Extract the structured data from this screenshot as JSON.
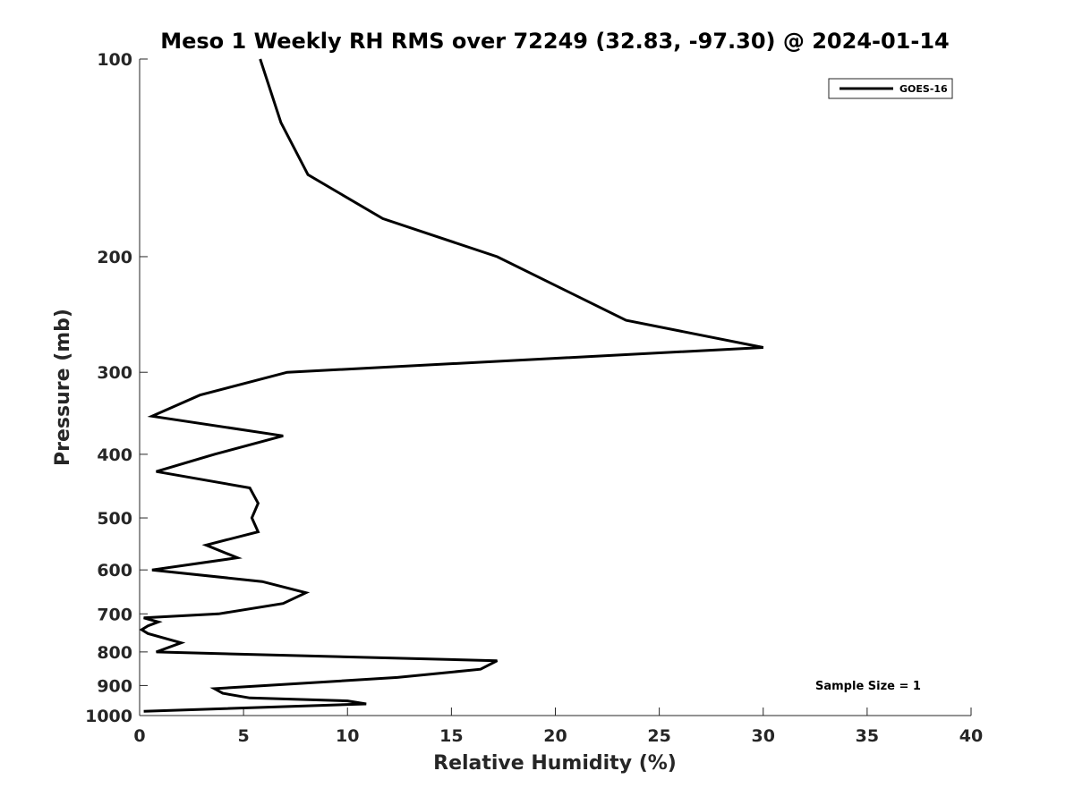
{
  "chart_data": {
    "type": "line",
    "title": "Meso 1 Weekly RH RMS over 72249 (32.83, -97.30) @ 2024-01-14",
    "xlabel": "Relative Humidity (%)",
    "ylabel": "Pressure (mb)",
    "xlim": [
      0,
      40
    ],
    "ylim": [
      100,
      1000
    ],
    "y_scale": "log",
    "y_reversed": true,
    "grid": false,
    "legend_position": "top-right",
    "xticks": [
      "0",
      "5",
      "10",
      "15",
      "20",
      "25",
      "30",
      "35",
      "40"
    ],
    "yticks": [
      "100",
      "200",
      "300",
      "400",
      "500",
      "600",
      "700",
      "800",
      "900",
      "1000"
    ],
    "annotation": "Sample Size = 1",
    "series": [
      {
        "name": "GOES-16",
        "color": "#000000",
        "x": [
          5.8,
          6.8,
          8.1,
          11.7,
          17.2,
          23.4,
          30.0,
          7.1,
          2.9,
          0.6,
          6.9,
          3.6,
          0.8,
          5.3,
          5.7,
          5.4,
          5.7,
          3.2,
          4.7,
          0.6,
          5.9,
          8.0,
          6.9,
          3.8,
          0.2,
          0.9,
          0.4,
          0.1,
          0.4,
          2.0,
          0.8,
          17.2,
          16.4,
          12.4,
          6.1,
          3.6,
          4.0,
          5.3,
          10.0,
          10.9,
          0.2
        ],
        "y": [
          100,
          125,
          150,
          175,
          200,
          250,
          275,
          300,
          325,
          350,
          375,
          400,
          425,
          450,
          475,
          500,
          525,
          550,
          575,
          600,
          625,
          650,
          675,
          700,
          710,
          720,
          730,
          740,
          750,
          775,
          800,
          825,
          850,
          875,
          900,
          910,
          925,
          940,
          950,
          960,
          985
        ]
      }
    ]
  }
}
